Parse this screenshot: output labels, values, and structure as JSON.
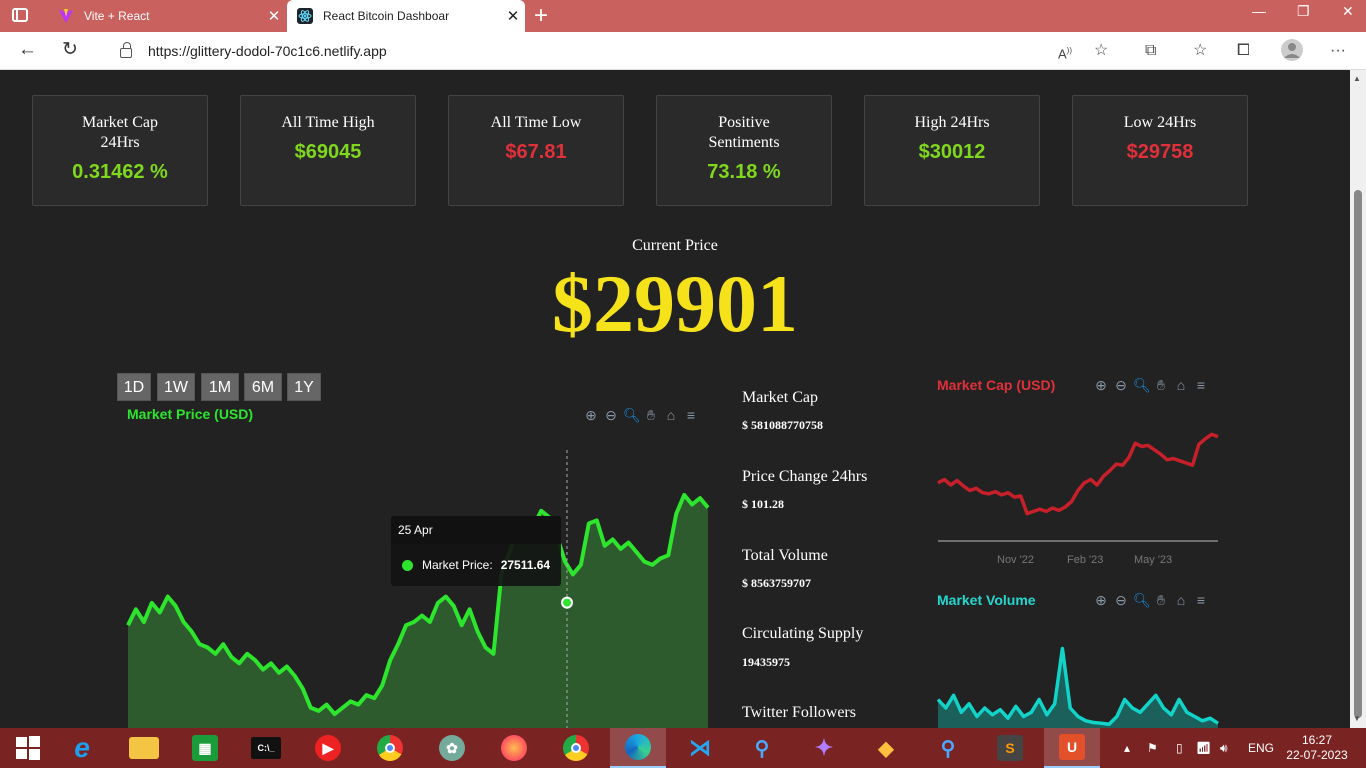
{
  "browser": {
    "tabs": [
      {
        "label": "Vite + React",
        "icon": "vite-icon"
      },
      {
        "label": "React Bitcoin Dashboar",
        "icon": "react-icon"
      }
    ],
    "url": "https://glittery-dodol-70c1c6.netlify.app",
    "window_controls": [
      "—",
      "❐",
      "✕"
    ]
  },
  "stats": [
    {
      "title": "Market Cap 24Hrs",
      "value": "0.31462 %",
      "color": "#7fd81e"
    },
    {
      "title": "All Time High",
      "value": "$69045",
      "color": "#7fd81e"
    },
    {
      "title": "All Time Low",
      "value": "$67.81",
      "color": "#e0303a"
    },
    {
      "title": "Positive Sentiments",
      "value": "73.18 %",
      "color": "#7fd81e"
    },
    {
      "title": "High 24Hrs",
      "value": "$30012",
      "color": "#7fd81e"
    },
    {
      "title": "Low 24Hrs",
      "value": "$29758",
      "color": "#e0303a"
    }
  ],
  "current": {
    "label": "Current Price",
    "price": "$29901"
  },
  "ranges": [
    "1D",
    "1W",
    "1M",
    "6M",
    "1Y"
  ],
  "main_chart": {
    "title": "Market Price (USD)",
    "tooltip": {
      "date": "25 Apr",
      "series": "Market Price:",
      "value": "27511.64"
    }
  },
  "info": [
    {
      "label": "Market Cap",
      "value": "$ 581088770758"
    },
    {
      "label": "Price Change 24hrs",
      "value": "$ 101.28"
    },
    {
      "label": "Total Volume",
      "value": "$ 8563759707"
    },
    {
      "label": "Circulating Supply",
      "value": "19435975"
    },
    {
      "label": "Twitter Followers",
      "value": ""
    }
  ],
  "cap_chart": {
    "title": "Market Cap (USD)",
    "x_ticks": [
      "Nov '22",
      "Feb '23",
      "May '23"
    ]
  },
  "volume_chart": {
    "title": "Market Volume"
  },
  "colors": {
    "price_line": "#2ee52e",
    "price_fill": "#2f5f2f",
    "cap_line": "#c8202a",
    "volume_line": "#12d3c8",
    "cap_title": "#e0303a",
    "volume_title": "#22d8d0",
    "price_title": "#2ee52e"
  },
  "taskbar": {
    "apps": [
      "windows-start-icon",
      "edge-legacy-icon",
      "file-explorer-icon",
      "store-icon",
      "terminal-icon",
      "youtube-music-icon",
      "chrome-icon",
      "chatgpt-icon",
      "firefox-icon",
      "chrome-profile-icon",
      "edge-icon",
      "vscode-icon",
      "search-icon",
      "copilot-icon",
      "git-icon",
      "search-icon-2",
      "sublime-icon",
      "office-icon"
    ],
    "language": "ENG",
    "time": "16:27",
    "date": "22-07-2023"
  },
  "chart_data": [
    {
      "type": "area",
      "title": "Market Price (USD)",
      "series": [
        {
          "name": "Market Price",
          "values": [
            26800,
            27300,
            26900,
            27500,
            27200,
            27700,
            27400,
            26900,
            26600,
            26200,
            26100,
            25900,
            26200,
            25800,
            25600,
            25900,
            25700,
            25400,
            25600,
            25300,
            25500,
            25200,
            24800,
            24200,
            24100,
            24300,
            24000,
            24200,
            24400,
            24300,
            24600,
            24500,
            24900,
            25700,
            26200,
            26800,
            26900,
            27100,
            26900,
            27500,
            27700,
            27400,
            26800,
            27300,
            26600,
            26100,
            25900,
            28400,
            29100,
            29800,
            29400,
            29900,
            30400,
            30200,
            29600,
            28800,
            28400,
            28700,
            30000,
            30100,
            29300,
            29500,
            29200,
            29400,
            29100,
            28800,
            28700,
            28900,
            29000,
            30300,
            30900,
            30600,
            30800,
            30500
          ]
        }
      ],
      "tooltip_value": 27511.64,
      "tooltip_date": "25 Apr"
    },
    {
      "type": "line",
      "title": "Market Cap (USD)",
      "x_ticks": [
        "Nov '22",
        "Feb '23",
        "May '23"
      ],
      "series": [
        {
          "name": "Market Cap",
          "values": [
            0.52,
            0.55,
            0.5,
            0.54,
            0.49,
            0.45,
            0.47,
            0.43,
            0.42,
            0.44,
            0.41,
            0.43,
            0.39,
            0.4,
            0.24,
            0.26,
            0.28,
            0.26,
            0.29,
            0.27,
            0.3,
            0.35,
            0.45,
            0.52,
            0.55,
            0.5,
            0.58,
            0.63,
            0.69,
            0.68,
            0.75,
            0.88,
            0.85,
            0.86,
            0.82,
            0.78,
            0.73,
            0.74,
            0.72,
            0.7,
            0.68,
            0.87,
            0.92,
            0.96,
            0.94
          ]
        }
      ]
    },
    {
      "type": "line",
      "title": "Market Volume",
      "series": [
        {
          "name": "Market Volume",
          "values": [
            0.3,
            0.2,
            0.35,
            0.15,
            0.25,
            0.1,
            0.2,
            0.12,
            0.18,
            0.08,
            0.22,
            0.1,
            0.15,
            0.3,
            0.12,
            0.25,
            0.9,
            0.2,
            0.1,
            0.05,
            0.03,
            0.02,
            0.01,
            0.1,
            0.3,
            0.2,
            0.15,
            0.25,
            0.35,
            0.2,
            0.12,
            0.3,
            0.15,
            0.1,
            0.05,
            0.08,
            0.02
          ]
        }
      ]
    }
  ]
}
